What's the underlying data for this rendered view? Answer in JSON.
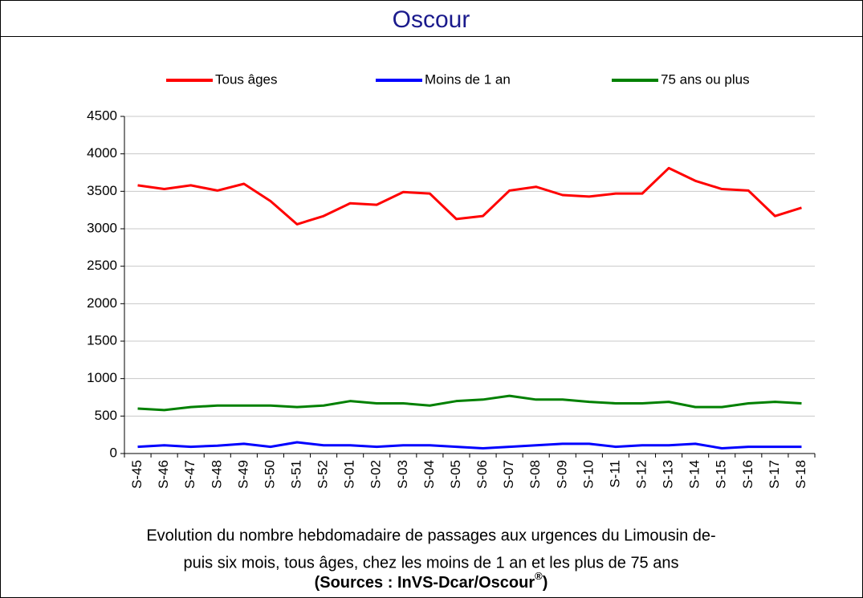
{
  "chart_data": {
    "type": "line",
    "title": "Oscour",
    "categories": [
      "S-45",
      "S-46",
      "S-47",
      "S-48",
      "S-49",
      "S-50",
      "S-51",
      "S-52",
      "S-01",
      "S-02",
      "S-03",
      "S-04",
      "S-05",
      "S-06",
      "S-07",
      "S-08",
      "S-09",
      "S-10",
      "S-11",
      "S-12",
      "S-13",
      "S-14",
      "S-15",
      "S-16",
      "S-17",
      "S-18"
    ],
    "series": [
      {
        "name": "Tous âges",
        "color": "#ff0000",
        "values": [
          3580,
          3530,
          3580,
          3510,
          3600,
          3370,
          3060,
          3170,
          3340,
          3320,
          3490,
          3470,
          3130,
          3170,
          3510,
          3560,
          3450,
          3430,
          3470,
          3470,
          3810,
          3640,
          3530,
          3510,
          3170,
          3280
        ]
      },
      {
        "name": "Moins de 1 an",
        "color": "#0000ff",
        "values": [
          90,
          110,
          90,
          105,
          130,
          90,
          150,
          110,
          110,
          90,
          110,
          110,
          90,
          70,
          90,
          110,
          130,
          130,
          90,
          110,
          110,
          130,
          70,
          90,
          90,
          90
        ]
      },
      {
        "name": "75 ans ou plus",
        "color": "#008000",
        "values": [
          600,
          580,
          620,
          640,
          640,
          640,
          620,
          640,
          700,
          670,
          670,
          640,
          700,
          720,
          770,
          720,
          720,
          690,
          670,
          670,
          690,
          620,
          620,
          670,
          690,
          670
        ]
      }
    ],
    "ylim": [
      0,
      4500
    ],
    "yticks": [
      0,
      500,
      1000,
      1500,
      2000,
      2500,
      3000,
      3500,
      4000,
      4500
    ],
    "grid": true,
    "legend": "top",
    "caption": [
      "Evolution du nombre hebdomadaire de passages aux urgences du Limousin de-",
      "puis six mois, tous âges, chez les moins de 1 an et les plus de 75 ans"
    ],
    "source": {
      "text": "(Sources : InVS-Dcar/Oscour",
      "mark": "®",
      "end": ")"
    }
  }
}
